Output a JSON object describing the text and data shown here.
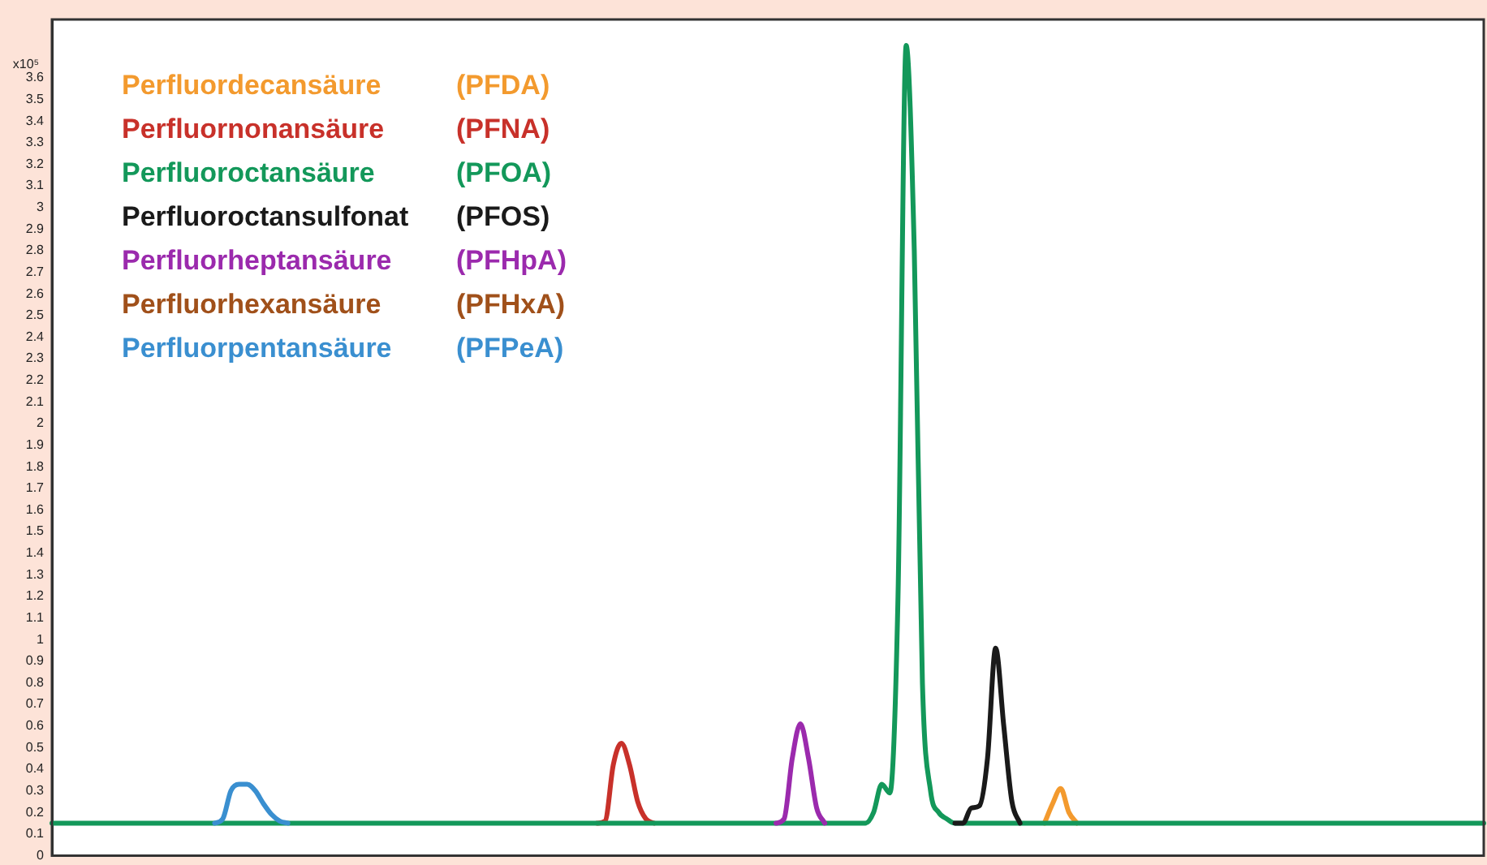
{
  "chart_data": {
    "type": "line",
    "ylabel": "x10⁵",
    "grid": false,
    "marker": "none",
    "line_style": "solid",
    "tick_labels": "y",
    "ylim": [
      0,
      3.87
    ],
    "yticks": [
      0,
      0.1,
      0.2,
      0.3,
      0.4,
      0.5,
      0.6,
      0.7,
      0.8,
      0.9,
      1,
      1.1,
      1.2,
      1.3,
      1.4,
      1.5,
      1.6,
      1.7,
      1.8,
      1.9,
      2,
      2.1,
      2.2,
      2.3,
      2.4,
      2.5,
      2.6,
      2.7,
      2.8,
      2.9,
      3,
      3.1,
      3.2,
      3.3,
      3.4,
      3.5,
      3.6
    ],
    "categories": [
      null,
      null,
      null,
      null,
      null,
      null,
      null,
      null,
      null,
      null,
      null,
      null,
      null,
      null,
      null,
      null,
      null,
      null,
      null,
      null,
      null,
      null,
      null,
      null,
      null,
      null,
      null,
      null,
      null,
      null,
      null,
      null,
      null,
      null,
      null,
      null,
      null,
      null,
      null,
      null,
      null,
      null,
      null,
      null,
      null,
      null,
      null,
      null,
      null,
      null,
      null,
      null,
      null,
      null,
      null,
      null,
      null,
      null,
      null,
      null,
      null,
      null,
      null,
      null,
      null,
      null,
      null,
      null,
      null,
      null,
      null,
      null,
      null,
      null,
      null,
      null,
      null,
      null,
      null,
      null,
      null,
      null,
      null,
      null,
      null,
      null,
      null,
      null,
      null,
      null,
      null,
      null,
      null,
      null,
      null,
      null,
      null,
      null,
      null,
      null,
      null,
      null,
      null,
      null,
      null,
      null,
      null,
      null,
      null,
      null,
      null,
      null,
      null,
      null,
      null,
      null,
      null,
      null,
      null,
      null,
      null,
      null,
      null,
      null,
      null,
      null,
      null,
      null,
      null,
      null,
      null,
      null,
      null,
      null,
      null,
      null,
      null,
      null,
      null,
      null,
      null,
      null,
      null,
      null,
      null,
      null,
      null,
      null,
      null,
      null,
      null,
      null,
      null,
      null,
      null,
      null,
      null,
      null,
      null,
      null,
      null,
      null,
      null,
      null,
      null,
      null,
      null,
      null,
      null,
      null,
      null,
      null,
      null,
      null,
      null,
      null,
      null
    ],
    "series": [
      {
        "name": "Perfluordecansäure (PFDA)",
        "color": "#f39a2e",
        "values": [
          null,
          null,
          null,
          null,
          null,
          null,
          null,
          null,
          null,
          null,
          null,
          null,
          null,
          null,
          null,
          null,
          null,
          null,
          null,
          null,
          null,
          null,
          null,
          null,
          null,
          null,
          null,
          null,
          null,
          null,
          null,
          null,
          null,
          null,
          null,
          null,
          null,
          null,
          null,
          null,
          null,
          null,
          null,
          null,
          null,
          null,
          null,
          null,
          null,
          null,
          null,
          null,
          null,
          null,
          null,
          null,
          null,
          null,
          null,
          null,
          null,
          null,
          null,
          null,
          null,
          null,
          null,
          null,
          null,
          null,
          null,
          null,
          null,
          null,
          null,
          null,
          null,
          null,
          null,
          null,
          null,
          null,
          null,
          null,
          null,
          null,
          null,
          null,
          null,
          null,
          null,
          null,
          null,
          null,
          null,
          null,
          null,
          null,
          null,
          null,
          null,
          null,
          null,
          null,
          null,
          null,
          null,
          null,
          null,
          null,
          null,
          null,
          null,
          null,
          null,
          null,
          null,
          null,
          null,
          null,
          null,
          null,
          0.15,
          0.24,
          0.31,
          0.2,
          0.15,
          null,
          null,
          null,
          null,
          null,
          null,
          null,
          null,
          null,
          null,
          null,
          null,
          null,
          null,
          null,
          null,
          null,
          null,
          null,
          null,
          null,
          null,
          null,
          null,
          null,
          null,
          null,
          null,
          null,
          null,
          null,
          null,
          null,
          null,
          null,
          null,
          null,
          null,
          null,
          null,
          null,
          null,
          null,
          null,
          null,
          null,
          null,
          null,
          null,
          null
        ]
      },
      {
        "name": "Perfluornonansäure (PFNA)",
        "color": "#c8312a",
        "values": [
          null,
          null,
          null,
          null,
          null,
          null,
          null,
          null,
          null,
          null,
          null,
          null,
          null,
          null,
          null,
          null,
          null,
          null,
          null,
          null,
          null,
          null,
          null,
          null,
          null,
          null,
          null,
          null,
          null,
          null,
          null,
          null,
          null,
          null,
          null,
          null,
          null,
          null,
          null,
          null,
          null,
          null,
          null,
          null,
          null,
          null,
          null,
          null,
          null,
          null,
          null,
          null,
          null,
          null,
          null,
          null,
          null,
          null,
          null,
          null,
          null,
          null,
          null,
          null,
          null,
          null,
          null,
          0.15,
          0.16,
          0.42,
          0.52,
          0.42,
          0.25,
          0.17,
          0.15,
          null,
          null,
          null,
          null,
          null,
          null,
          null,
          null,
          null,
          null,
          null,
          null,
          null,
          null,
          null,
          null,
          null,
          null,
          null,
          null,
          null,
          null,
          null,
          null,
          null,
          null,
          null,
          null,
          null,
          null,
          null,
          null,
          null,
          null,
          null,
          null,
          null,
          null,
          null,
          null,
          null,
          null,
          null,
          null,
          null,
          null,
          null,
          null,
          null,
          null,
          null,
          null,
          null,
          null,
          null,
          null,
          null,
          null,
          null,
          null,
          null,
          null,
          null,
          null,
          null,
          null,
          null,
          null,
          null,
          null,
          null,
          null,
          null,
          null,
          null,
          null,
          null,
          null,
          null,
          null,
          null,
          null,
          null,
          null,
          null,
          null,
          null,
          null,
          null,
          null,
          null,
          null,
          null,
          null,
          null,
          null,
          null,
          null,
          null,
          null,
          null,
          null
        ]
      },
      {
        "name": "Perfluoroctansäure (PFOA)",
        "color": "#13985a",
        "values": [
          0.15,
          0.15,
          0.15,
          0.15,
          0.15,
          0.15,
          0.15,
          0.15,
          0.15,
          0.15,
          0.15,
          0.15,
          0.15,
          0.15,
          0.15,
          0.15,
          0.15,
          0.15,
          0.15,
          0.15,
          0.15,
          0.15,
          0.15,
          0.15,
          0.15,
          0.15,
          0.15,
          0.15,
          0.15,
          0.15,
          0.15,
          0.15,
          0.15,
          0.15,
          0.15,
          0.15,
          0.15,
          0.15,
          0.15,
          0.15,
          0.15,
          0.15,
          0.15,
          0.15,
          0.15,
          0.15,
          0.15,
          0.15,
          0.15,
          0.15,
          0.15,
          0.15,
          0.15,
          0.15,
          0.15,
          0.15,
          0.15,
          0.15,
          0.15,
          0.15,
          0.15,
          0.15,
          0.15,
          0.15,
          0.15,
          0.15,
          0.15,
          0.15,
          0.15,
          0.15,
          0.15,
          0.15,
          0.15,
          0.15,
          0.15,
          0.15,
          0.15,
          0.15,
          0.15,
          0.15,
          0.15,
          0.15,
          0.15,
          0.15,
          0.15,
          0.15,
          0.15,
          0.15,
          0.15,
          0.15,
          0.15,
          0.15,
          0.15,
          0.15,
          0.15,
          0.15,
          0.15,
          0.15,
          0.15,
          0.15,
          0.15,
          0.2,
          0.33,
          0.29,
          1.2,
          3.75,
          2.8,
          0.8,
          0.3,
          0.2,
          0.17,
          0.15,
          0.15,
          0.15,
          0.15,
          0.15,
          0.15,
          0.15,
          0.15,
          0.15,
          0.15,
          0.15,
          0.15,
          0.15,
          0.15,
          0.15,
          0.15,
          0.15,
          0.15,
          0.15,
          0.15,
          0.15,
          0.15,
          0.15,
          0.15,
          0.15,
          0.15,
          0.15,
          0.15,
          0.15,
          0.15,
          0.15,
          0.15,
          0.15,
          0.15,
          0.15,
          0.15,
          0.15,
          0.15,
          0.15,
          0.15,
          0.15,
          0.15,
          0.15,
          0.15,
          0.15,
          0.15,
          0.15,
          0.15,
          0.15,
          0.15,
          0.15,
          0.15,
          0.15,
          0.15,
          0.15,
          0.15,
          0.15,
          0.15,
          0.15,
          0.15,
          0.15,
          0.15,
          0.15,
          0.15,
          0.15,
          0.15
        ]
      },
      {
        "name": "Perfluoroctansulfonat (PFOS)",
        "color": "#1a1a1a",
        "values": [
          null,
          null,
          null,
          null,
          null,
          null,
          null,
          null,
          null,
          null,
          null,
          null,
          null,
          null,
          null,
          null,
          null,
          null,
          null,
          null,
          null,
          null,
          null,
          null,
          null,
          null,
          null,
          null,
          null,
          null,
          null,
          null,
          null,
          null,
          null,
          null,
          null,
          null,
          null,
          null,
          null,
          null,
          null,
          null,
          null,
          null,
          null,
          null,
          null,
          null,
          null,
          null,
          null,
          null,
          null,
          null,
          null,
          null,
          null,
          null,
          null,
          null,
          null,
          null,
          null,
          null,
          null,
          null,
          null,
          null,
          null,
          null,
          null,
          null,
          null,
          null,
          null,
          null,
          null,
          null,
          null,
          null,
          null,
          null,
          null,
          null,
          null,
          null,
          null,
          null,
          null,
          null,
          null,
          null,
          null,
          null,
          null,
          null,
          null,
          null,
          null,
          null,
          null,
          null,
          null,
          null,
          null,
          null,
          null,
          null,
          null,
          0.15,
          0.15,
          0.22,
          0.23,
          0.45,
          0.96,
          0.6,
          0.25,
          0.15,
          null,
          null,
          null,
          null,
          null,
          null,
          null,
          null,
          null,
          null,
          null,
          null,
          null,
          null,
          null,
          null,
          null,
          null,
          null,
          null,
          null,
          null,
          null,
          null,
          null,
          null,
          null,
          null,
          null,
          null,
          null,
          null,
          null,
          null,
          null,
          null,
          null,
          null,
          null,
          null,
          null,
          null,
          null,
          null,
          null,
          null,
          null,
          null,
          null,
          null,
          null,
          null,
          null,
          null,
          null,
          null,
          null
        ]
      },
      {
        "name": "Perfluorheptansäure (PFHpA)",
        "color": "#9b2aad",
        "values": [
          null,
          null,
          null,
          null,
          null,
          null,
          null,
          null,
          null,
          null,
          null,
          null,
          null,
          null,
          null,
          null,
          null,
          null,
          null,
          null,
          null,
          null,
          null,
          null,
          null,
          null,
          null,
          null,
          null,
          null,
          null,
          null,
          null,
          null,
          null,
          null,
          null,
          null,
          null,
          null,
          null,
          null,
          null,
          null,
          null,
          null,
          null,
          null,
          null,
          null,
          null,
          null,
          null,
          null,
          null,
          null,
          null,
          null,
          null,
          null,
          null,
          null,
          null,
          null,
          null,
          null,
          null,
          null,
          null,
          null,
          null,
          null,
          null,
          null,
          null,
          null,
          null,
          null,
          null,
          null,
          null,
          null,
          null,
          null,
          null,
          null,
          null,
          null,
          null,
          0.15,
          0.17,
          0.45,
          0.61,
          0.45,
          0.22,
          0.15,
          null,
          null,
          null,
          null,
          null,
          null,
          null,
          null,
          null,
          null,
          null,
          null,
          null,
          null,
          null,
          null,
          null,
          null,
          null,
          null,
          null,
          null,
          null,
          null,
          null,
          null,
          null,
          null,
          null,
          null,
          null,
          null,
          null,
          null,
          null,
          null,
          null,
          null,
          null,
          null,
          null,
          null,
          null,
          null,
          null,
          null,
          null,
          null,
          null,
          null,
          null,
          null,
          null,
          null,
          null,
          null,
          null,
          null,
          null,
          null,
          null,
          null,
          null,
          null,
          null,
          null,
          null,
          null,
          null,
          null,
          null,
          null,
          null,
          null,
          null,
          null,
          null,
          null,
          null,
          null,
          null
        ]
      },
      {
        "name": "Perfluorhexansäure (PFHxA)",
        "color": "#a0501a",
        "values": [
          null,
          null,
          null,
          null,
          null,
          null,
          null,
          null,
          null,
          null,
          null,
          null,
          null,
          null,
          null,
          null,
          null,
          null,
          null,
          null,
          null,
          null,
          null,
          null,
          null,
          null,
          null,
          null,
          null,
          null,
          null,
          null,
          null,
          null,
          null,
          null,
          null,
          null,
          null,
          null,
          null,
          null,
          null,
          null,
          null,
          null,
          null,
          null,
          null,
          null,
          null,
          null,
          null,
          null,
          null,
          null,
          null,
          null,
          null,
          null,
          null,
          null,
          null,
          null,
          null,
          null,
          null,
          null,
          null,
          null,
          null,
          null,
          null,
          null,
          null,
          null,
          null,
          null,
          null,
          null,
          null,
          null,
          null,
          null,
          null,
          null,
          null,
          null,
          null,
          null,
          null,
          null,
          null,
          null,
          null,
          null,
          null,
          null,
          null,
          null,
          null,
          null,
          null,
          null,
          null,
          null,
          null,
          null,
          null,
          null,
          null,
          null,
          null,
          null,
          null,
          null,
          null,
          null,
          null,
          null,
          null,
          null,
          null,
          null,
          null,
          null,
          null,
          null,
          null,
          null,
          null,
          null,
          null,
          null,
          null,
          null,
          null,
          null,
          null,
          null,
          null,
          null,
          null,
          null,
          null,
          null,
          null,
          null,
          null,
          null,
          null,
          null,
          null,
          null,
          null,
          null,
          null,
          null,
          null,
          null,
          null,
          null,
          null,
          null,
          null,
          null,
          null,
          null,
          null,
          null,
          null,
          null,
          null,
          null,
          null,
          null,
          null
        ]
      },
      {
        "name": "Perfluorpentansäure (PFPeA)",
        "color": "#3a8fd0",
        "values": [
          null,
          null,
          null,
          null,
          null,
          null,
          null,
          null,
          null,
          null,
          null,
          null,
          null,
          null,
          null,
          null,
          null,
          null,
          null,
          null,
          0.15,
          0.17,
          0.3,
          0.33,
          0.33,
          0.3,
          0.24,
          0.19,
          0.16,
          0.15,
          null,
          null,
          null,
          null,
          null,
          null,
          null,
          null,
          null,
          null,
          null,
          null,
          null,
          null,
          null,
          null,
          null,
          null,
          null,
          null,
          null,
          null,
          null,
          null,
          null,
          null,
          null,
          null,
          null,
          null,
          null,
          null,
          null,
          null,
          null,
          null,
          null,
          null,
          null,
          null,
          null,
          null,
          null,
          null,
          null,
          null,
          null,
          null,
          null,
          null,
          null,
          null,
          null,
          null,
          null,
          null,
          null,
          null,
          null,
          null,
          null,
          null,
          null,
          null,
          null,
          null,
          null,
          null,
          null,
          null,
          null,
          null,
          null,
          null,
          null,
          null,
          null,
          null,
          null,
          null,
          null,
          null,
          null,
          null,
          null,
          null,
          null,
          null,
          null,
          null,
          null,
          null,
          null,
          null,
          null,
          null,
          null,
          null,
          null,
          null,
          null,
          null,
          null,
          null,
          null,
          null,
          null,
          null,
          null,
          null,
          null,
          null,
          null,
          null,
          null,
          null,
          null,
          null,
          null,
          null,
          null,
          null,
          null,
          null,
          null,
          null,
          null,
          null,
          null,
          null,
          null,
          null,
          null,
          null,
          null,
          null,
          null,
          null,
          null,
          null,
          null,
          null,
          null,
          null,
          null,
          null,
          null
        ]
      }
    ]
  }
}
